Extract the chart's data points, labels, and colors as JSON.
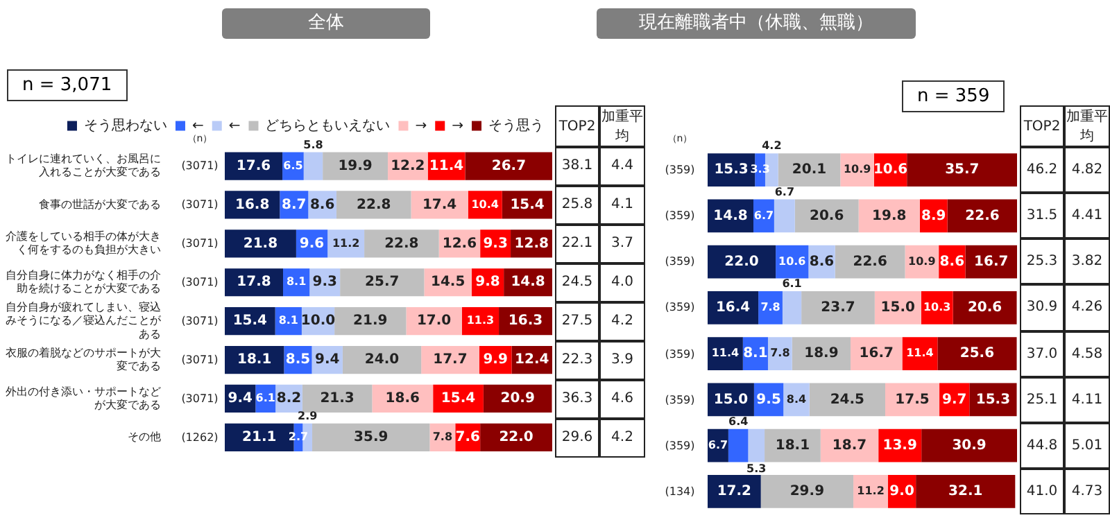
{
  "chart_data": [
    {
      "type": "bar",
      "orientation": "horizontal",
      "stacked": true,
      "title": "全体",
      "subtitle": "n = 3,071",
      "legend": "top",
      "grid": false,
      "tick_labels": "y",
      "xlim": [
        0,
        100
      ],
      "categories": [
        "トイレに連れていく、お風呂に入れることが大変である",
        "食事の世話が大変である",
        "介護をしている相手の体が大きく何をするのも負担が大きい",
        "自分自身に体力がなく相手の介助を続けることが大変である",
        "自分自身が疲れてしまい、寝込みそうになる／寝込んだことがある",
        "衣服の着脱などのサポートが大変である",
        "外出の付き添い・サポートなどが大変である",
        "その他"
      ],
      "series": [
        {
          "name": "そう思わない",
          "color": "#0c1f5a",
          "values": [
            17.6,
            16.8,
            21.8,
            17.8,
            15.4,
            18.1,
            9.4,
            21.1
          ],
          "value_labels": [
            "17.6",
            "16.8",
            "21.8",
            "17.8",
            "15.4",
            "18.1",
            "9.4",
            "21.1"
          ]
        },
        {
          "name": "←",
          "color": "#3366ff",
          "values": [
            6.5,
            8.7,
            9.6,
            8.1,
            8.1,
            8.5,
            6.1,
            2.7
          ],
          "value_labels": [
            "6.5",
            "8.7",
            "9.6",
            "8.1",
            "8.1",
            "8.5",
            "6.1",
            "2.7"
          ]
        },
        {
          "name": "←",
          "color": "#b9cbf7",
          "values": [
            5.8,
            8.6,
            11.2,
            9.3,
            10.0,
            9.4,
            8.2,
            2.9
          ],
          "value_labels": [
            "5.8",
            "8.6",
            "11.2",
            "9.3",
            "10.0",
            "9.4",
            "8.2",
            "2.9"
          ]
        },
        {
          "name": "どちらともいえない",
          "color": "#bfbfbf",
          "values": [
            19.9,
            22.8,
            22.8,
            25.7,
            21.9,
            24.0,
            21.3,
            35.9
          ],
          "value_labels": [
            "19.9",
            "22.8",
            "22.8",
            "25.7",
            "21.9",
            "24.0",
            "21.3",
            "35.9"
          ]
        },
        {
          "name": "→",
          "color": "#ffbfbf",
          "values": [
            12.2,
            17.4,
            12.6,
            14.5,
            17.0,
            17.7,
            18.6,
            7.8
          ],
          "value_labels": [
            "12.2",
            "17.4",
            "12.6",
            "14.5",
            "17.0",
            "17.7",
            "18.6",
            "7.8"
          ]
        },
        {
          "name": "→",
          "color": "#ff0000",
          "values": [
            11.4,
            10.4,
            9.3,
            9.8,
            11.3,
            9.9,
            15.4,
            7.6
          ],
          "value_labels": [
            "11.4",
            "10.4",
            "9.3",
            "9.8",
            "11.3",
            "9.9",
            "15.4",
            "7.6"
          ]
        },
        {
          "name": "そう思う",
          "color": "#8b0000",
          "values": [
            26.7,
            15.4,
            12.8,
            14.8,
            16.3,
            12.4,
            20.9,
            22.0
          ],
          "value_labels": [
            "26.7",
            "15.4",
            "12.8",
            "14.8",
            "16.3",
            "12.4",
            "20.9",
            "22.0"
          ]
        }
      ],
      "annotations": [
        "（n）",
        "TOP2",
        "加重平均",
        "(3071)",
        "38.1",
        "4.4",
        "(3071)",
        "25.8",
        "4.1",
        "(3071)",
        "22.1",
        "3.7",
        "(3071)",
        "24.5",
        "4.0",
        "(3071)",
        "27.5",
        "4.2",
        "(3071)",
        "22.3",
        "3.9",
        "(3071)",
        "36.3",
        "4.6",
        "(1262)",
        "29.6",
        "4.2"
      ]
    },
    {
      "type": "bar",
      "orientation": "horizontal",
      "stacked": true,
      "title": "現在離職者中（休職、無職）",
      "subtitle": "n = 359",
      "grid": false,
      "tick_labels": false,
      "xlim": [
        0,
        100
      ],
      "categories": [
        null,
        null,
        null,
        null,
        null,
        null,
        null,
        null
      ],
      "series": [
        {
          "color": "#0c1f5a",
          "values": [
            15.3,
            14.8,
            22.0,
            16.4,
            11.4,
            15.0,
            6.7,
            17.2
          ],
          "value_labels": [
            "15.3",
            "14.8",
            "22.0",
            "16.4",
            "11.4",
            "15.0",
            "6.7",
            "17.2"
          ]
        },
        {
          "color": "#3366ff",
          "values": [
            3.3,
            6.7,
            10.6,
            7.8,
            8.1,
            9.5,
            6.4,
            null
          ],
          "value_labels": [
            "3.3",
            "6.7",
            "10.6",
            "7.8",
            "8.1",
            "9.5",
            "6.4",
            null
          ]
        },
        {
          "color": "#b9cbf7",
          "values": [
            4.2,
            6.7,
            8.6,
            6.1,
            7.8,
            8.4,
            5.3,
            null
          ],
          "value_labels": [
            "4.2",
            "6.7",
            "8.6",
            "6.1",
            "7.8",
            "8.4",
            "5.3",
            null
          ]
        },
        {
          "color": "#bfbfbf",
          "values": [
            20.1,
            20.6,
            22.6,
            23.7,
            18.9,
            24.5,
            18.1,
            29.9
          ],
          "value_labels": [
            "20.1",
            "20.6",
            "22.6",
            "23.7",
            "18.9",
            "24.5",
            "18.1",
            "29.9"
          ]
        },
        {
          "color": "#ffbfbf",
          "values": [
            10.9,
            19.8,
            10.9,
            15.0,
            16.7,
            17.5,
            18.7,
            11.2
          ],
          "value_labels": [
            "10.9",
            "19.8",
            "10.9",
            "15.0",
            "16.7",
            "17.5",
            "18.7",
            "11.2"
          ]
        },
        {
          "color": "#ff0000",
          "values": [
            10.6,
            8.9,
            8.6,
            10.3,
            11.4,
            9.7,
            13.9,
            9.0
          ],
          "value_labels": [
            "10.6",
            "8.9",
            "8.6",
            "10.3",
            "11.4",
            "9.7",
            "13.9",
            "9.0"
          ]
        },
        {
          "color": "#8b0000",
          "values": [
            35.7,
            22.6,
            16.7,
            20.6,
            25.6,
            15.3,
            30.9,
            32.1
          ],
          "value_labels": [
            "35.7",
            "22.6",
            "16.7",
            "20.6",
            "25.6",
            "15.3",
            "30.9",
            "32.1"
          ]
        }
      ],
      "annotations": [
        "（n）",
        "TOP2",
        "加重平均",
        "(359)",
        "46.2",
        "4.82",
        "(359)",
        "31.5",
        "4.41",
        "(359)",
        "25.3",
        "3.82",
        "(359)",
        "30.9",
        "4.26",
        "(359)",
        "37.0",
        "4.58",
        "(359)",
        "25.1",
        "4.11",
        "(359)",
        "44.8",
        "5.01",
        "(134)",
        "41.0",
        "4.73"
      ]
    }
  ]
}
